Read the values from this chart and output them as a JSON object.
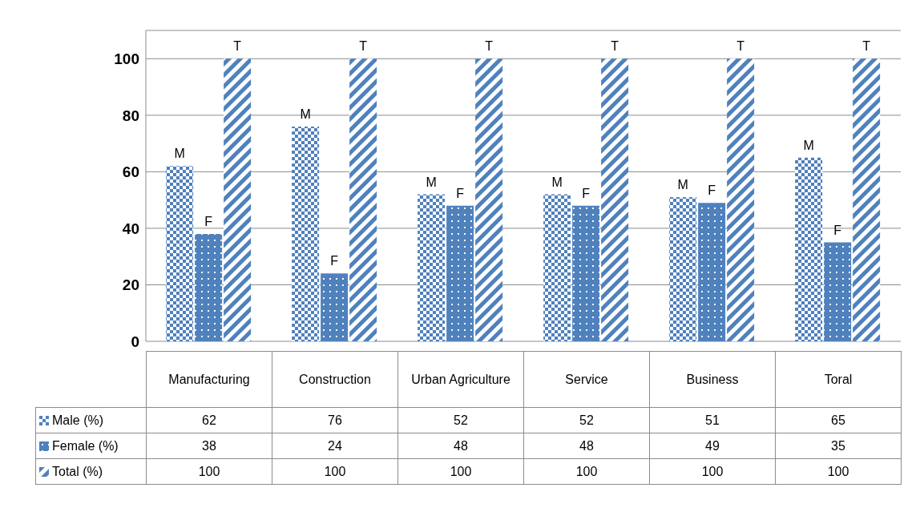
{
  "chart_data": {
    "type": "bar",
    "categories": [
      "Manufacturing",
      "Construction",
      "Urban Agriculture",
      "Service",
      "Business",
      "Toral"
    ],
    "series": [
      {
        "name": "Male (%)",
        "color": "#4f81bd",
        "values": [
          62,
          76,
          52,
          52,
          51,
          65
        ]
      },
      {
        "name": "Female (%)",
        "color": "#4f81bd",
        "values": [
          38,
          24,
          48,
          48,
          49,
          35
        ]
      },
      {
        "name": "Total (%)",
        "color": "#4f81bd",
        "values": [
          100,
          100,
          100,
          100,
          100,
          100
        ]
      }
    ],
    "annotations": [
      "M",
      "F",
      "T",
      "M",
      "F",
      "T",
      "M",
      "F",
      "T",
      "M",
      "F",
      "T",
      "M",
      "F",
      "T",
      "M",
      "F",
      "T"
    ],
    "ylim": [
      0,
      110
    ],
    "yticks": [
      0,
      20,
      40,
      60,
      80,
      100
    ],
    "grid": "y",
    "legend": "bottom",
    "data_labels": true
  }
}
